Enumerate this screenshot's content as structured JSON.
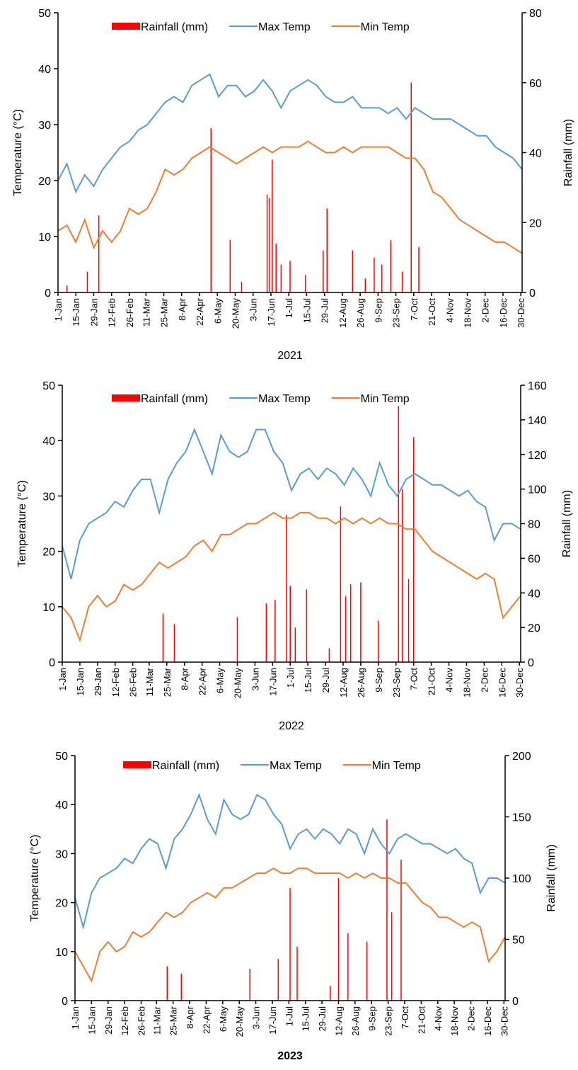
{
  "chart_data": [
    {
      "type": "bar-line",
      "xlabel": "2021",
      "ylabel": "Temperature (°C)",
      "y2label": "Rainfall (mm)",
      "ylim": [
        0,
        50
      ],
      "yticks": [
        0,
        10,
        20,
        30,
        40,
        50
      ],
      "y2lim": [
        0,
        80
      ],
      "y2ticks": [
        0,
        20,
        40,
        60,
        80
      ],
      "xticks": [
        "1-Jan",
        "15-Jan",
        "29-Jan",
        "12-Feb",
        "26-Feb",
        "11-Mar",
        "25-Mar",
        "8-Apr",
        "22-Apr",
        "6-May",
        "20-May",
        "3-Jun",
        "17-Jun",
        "1-Jul",
        "15-Jul",
        "29-Jul",
        "12-Aug",
        "26-Aug",
        "9-Sep",
        "23-Sep",
        "7-Oct",
        "21-Oct",
        "4-Nov",
        "18-Nov",
        "2-Dec",
        "16-Dec",
        "30-Dec"
      ],
      "x": [
        "1-Jan",
        "8-Jan",
        "15-Jan",
        "22-Jan",
        "29-Jan",
        "5-Feb",
        "12-Feb",
        "19-Feb",
        "26-Feb",
        "5-Mar",
        "12-Mar",
        "19-Mar",
        "26-Mar",
        "2-Apr",
        "9-Apr",
        "16-Apr",
        "23-Apr",
        "30-Apr",
        "7-May",
        "14-May",
        "21-May",
        "28-May",
        "4-Jun",
        "11-Jun",
        "18-Jun",
        "25-Jun",
        "2-Jul",
        "9-Jul",
        "16-Jul",
        "23-Jul",
        "30-Jul",
        "6-Aug",
        "13-Aug",
        "20-Aug",
        "27-Aug",
        "3-Sep",
        "10-Sep",
        "17-Sep",
        "24-Sep",
        "1-Oct",
        "8-Oct",
        "15-Oct",
        "22-Oct",
        "29-Oct",
        "5-Nov",
        "12-Nov",
        "19-Nov",
        "26-Nov",
        "3-Dec",
        "10-Dec",
        "17-Dec",
        "24-Dec",
        "31-Dec"
      ],
      "series": [
        {
          "name": "Rainfall (mm)",
          "color": "#ff0000",
          "axis": "y2",
          "x": [
            "8-Jan",
            "24-Jan",
            "2-Feb",
            "1-May",
            "16-May",
            "25-May",
            "14-Jun",
            "16-Jun",
            "18-Jun",
            "21-Jun",
            "25-Jun",
            "2-Jul",
            "14-Jul",
            "28-Jul",
            "31-Jul",
            "20-Aug",
            "30-Aug",
            "6-Sep",
            "12-Sep",
            "19-Sep",
            "28-Sep",
            "5-Oct",
            "11-Oct"
          ],
          "values": [
            2,
            6,
            22,
            47,
            15,
            3,
            28,
            27,
            38,
            14,
            8,
            9,
            5,
            12,
            24,
            12,
            4,
            10,
            8,
            15,
            6,
            60,
            13
          ]
        },
        {
          "name": "Max Temp",
          "color": "#5b9bd5",
          "values": [
            20,
            23,
            18,
            21,
            19,
            22,
            24,
            26,
            27,
            29,
            30,
            32,
            34,
            35,
            34,
            37,
            38,
            39,
            35,
            37,
            37,
            35,
            36,
            38,
            36,
            33,
            36,
            37,
            38,
            37,
            35,
            34,
            34,
            35,
            33,
            33,
            33,
            32,
            33,
            31,
            33,
            32,
            31,
            31,
            31,
            30,
            29,
            28,
            28,
            26,
            25,
            24,
            22
          ]
        },
        {
          "name": "Min Temp",
          "color": "#ed7d31",
          "values": [
            11,
            12,
            9,
            13,
            8,
            11,
            9,
            11,
            15,
            14,
            15,
            18,
            22,
            21,
            22,
            24,
            25,
            26,
            25,
            24,
            23,
            24,
            25,
            26,
            25,
            26,
            26,
            26,
            27,
            26,
            25,
            25,
            26,
            25,
            26,
            26,
            26,
            26,
            25,
            24,
            24,
            22,
            18,
            17,
            15,
            13,
            12,
            11,
            10,
            9,
            9,
            8,
            7
          ]
        }
      ]
    },
    {
      "type": "bar-line",
      "xlabel": "2022",
      "ylabel": "Temperature (°C)",
      "y2label": "Rainfall (mm)",
      "ylim": [
        0,
        50
      ],
      "yticks": [
        0,
        10,
        20,
        30,
        40,
        50
      ],
      "y2lim": [
        0,
        160
      ],
      "y2ticks": [
        0,
        20,
        40,
        60,
        80,
        100,
        120,
        140,
        160
      ],
      "xticks": [
        "1-Jan",
        "15-Jan",
        "29-Jan",
        "12-Feb",
        "26-Feb",
        "11-Mar",
        "25-Mar",
        "8-Apr",
        "22-Apr",
        "6-May",
        "20-May",
        "3-Jun",
        "17-Jun",
        "1-Jul",
        "15-Jul",
        "29-Jul",
        "12-Aug",
        "26-Aug",
        "9-Sep",
        "23-Sep",
        "7-Oct",
        "21-Oct",
        "4-Nov",
        "18-Nov",
        "2-Dec",
        "16-Dec",
        "30-Dec"
      ],
      "x": [
        "1-Jan",
        "8-Jan",
        "15-Jan",
        "22-Jan",
        "29-Jan",
        "5-Feb",
        "12-Feb",
        "19-Feb",
        "26-Feb",
        "5-Mar",
        "12-Mar",
        "19-Mar",
        "26-Mar",
        "2-Apr",
        "9-Apr",
        "16-Apr",
        "23-Apr",
        "30-Apr",
        "7-May",
        "14-May",
        "21-May",
        "28-May",
        "4-Jun",
        "11-Jun",
        "18-Jun",
        "25-Jun",
        "2-Jul",
        "9-Jul",
        "16-Jul",
        "23-Jul",
        "30-Jul",
        "6-Aug",
        "13-Aug",
        "20-Aug",
        "27-Aug",
        "3-Sep",
        "10-Sep",
        "17-Sep",
        "24-Sep",
        "1-Oct",
        "8-Oct",
        "15-Oct",
        "22-Oct",
        "29-Oct",
        "5-Nov",
        "12-Nov",
        "19-Nov",
        "26-Nov",
        "3-Dec",
        "10-Dec",
        "17-Dec",
        "24-Dec",
        "31-Dec"
      ],
      "series": [
        {
          "name": "Rainfall (mm)",
          "color": "#ff0000",
          "axis": "y2",
          "x": [
            "22-Mar",
            "31-Mar",
            "20-May",
            "12-Jun",
            "19-Jun",
            "28-Jun",
            "1-Jul",
            "5-Jul",
            "14-Jul",
            "1-Aug",
            "10-Aug",
            "14-Aug",
            "18-Aug",
            "26-Aug",
            "9-Sep",
            "25-Sep",
            "28-Sep",
            "3-Oct",
            "7-Oct"
          ],
          "values": [
            28,
            22,
            26,
            34,
            36,
            85,
            44,
            20,
            42,
            8,
            90,
            38,
            45,
            46,
            24,
            148,
            100,
            48,
            130
          ]
        },
        {
          "name": "Max Temp",
          "color": "#5b9bd5",
          "values": [
            21,
            15,
            22,
            25,
            26,
            27,
            29,
            28,
            31,
            33,
            33,
            27,
            33,
            36,
            38,
            42,
            38,
            34,
            41,
            38,
            37,
            38,
            42,
            42,
            38,
            36,
            31,
            34,
            35,
            33,
            35,
            34,
            32,
            35,
            33,
            30,
            36,
            32,
            30,
            33,
            34,
            33,
            32,
            32,
            31,
            30,
            31,
            29,
            28,
            22,
            25,
            25,
            24
          ]
        },
        {
          "name": "Min Temp",
          "color": "#ed7d31",
          "values": [
            10,
            8,
            4,
            10,
            12,
            10,
            11,
            14,
            13,
            14,
            16,
            18,
            17,
            18,
            19,
            21,
            22,
            20,
            23,
            23,
            24,
            25,
            25,
            26,
            27,
            26,
            26,
            27,
            27,
            26,
            26,
            25,
            26,
            25,
            26,
            25,
            26,
            25,
            25,
            24,
            24,
            22,
            20,
            19,
            18,
            17,
            16,
            15,
            16,
            15,
            8,
            10,
            12
          ]
        }
      ]
    },
    {
      "type": "bar-line",
      "xlabel": "2023",
      "ylabel": "Temperature (°C)",
      "y2label": "Rainfall (mm)",
      "ylim": [
        0,
        50
      ],
      "yticks": [
        0,
        10,
        20,
        30,
        40,
        50
      ],
      "y2lim": [
        0,
        200
      ],
      "y2ticks": [
        0,
        50,
        100,
        150,
        200
      ],
      "xticks": [
        "1-Jan",
        "15-Jan",
        "29-Jan",
        "12-Feb",
        "26-Feb",
        "11-Mar",
        "25-Mar",
        "8-Apr",
        "22-Apr",
        "6-May",
        "20-May",
        "3-Jun",
        "17-Jun",
        "1-Jul",
        "15-Jul",
        "29-Jul",
        "12-Aug",
        "26-Aug",
        "9-Sep",
        "23-Sep",
        "7-Oct",
        "21-Oct",
        "4-Nov",
        "18-Nov",
        "2-Dec",
        "16-Dec",
        "30-Dec"
      ],
      "x": [
        "1-Jan",
        "8-Jan",
        "15-Jan",
        "22-Jan",
        "29-Jan",
        "5-Feb",
        "12-Feb",
        "19-Feb",
        "26-Feb",
        "5-Mar",
        "12-Mar",
        "19-Mar",
        "26-Mar",
        "2-Apr",
        "9-Apr",
        "16-Apr",
        "23-Apr",
        "30-Apr",
        "7-May",
        "14-May",
        "21-May",
        "28-May",
        "4-Jun",
        "11-Jun",
        "18-Jun",
        "25-Jun",
        "2-Jul",
        "9-Jul",
        "16-Jul",
        "23-Jul",
        "30-Jul",
        "6-Aug",
        "13-Aug",
        "20-Aug",
        "27-Aug",
        "3-Sep",
        "10-Sep",
        "17-Sep",
        "24-Sep",
        "1-Oct",
        "8-Oct",
        "15-Oct",
        "22-Oct",
        "29-Oct",
        "5-Nov",
        "12-Nov",
        "19-Nov",
        "26-Nov",
        "3-Dec",
        "10-Dec",
        "17-Dec",
        "24-Dec",
        "31-Dec"
      ],
      "series": [
        {
          "name": "Rainfall (mm)",
          "color": "#ff0000",
          "axis": "y2",
          "x": [
            "20-Mar",
            "1-Apr",
            "29-May",
            "22-Jun",
            "2-Jul",
            "8-Jul",
            "5-Aug",
            "12-Aug",
            "20-Aug",
            "5-Sep",
            "22-Sep",
            "26-Sep",
            "4-Oct"
          ],
          "values": [
            28,
            22,
            26,
            34,
            92,
            44,
            12,
            100,
            55,
            48,
            148,
            72,
            115
          ]
        },
        {
          "name": "Max Temp",
          "color": "#5b9bd5",
          "values": [
            21,
            15,
            22,
            25,
            26,
            27,
            29,
            28,
            31,
            33,
            32,
            27,
            33,
            35,
            38,
            42,
            37,
            34,
            41,
            38,
            37,
            38,
            42,
            41,
            38,
            36,
            31,
            34,
            35,
            33,
            35,
            34,
            32,
            35,
            34,
            30,
            35,
            32,
            30,
            33,
            34,
            33,
            32,
            32,
            31,
            30,
            31,
            29,
            28,
            22,
            25,
            25,
            24
          ]
        },
        {
          "name": "Min Temp",
          "color": "#ed7d31",
          "values": [
            10,
            7,
            4,
            10,
            12,
            10,
            11,
            14,
            13,
            14,
            16,
            18,
            17,
            18,
            20,
            21,
            22,
            21,
            23,
            23,
            24,
            25,
            26,
            26,
            27,
            26,
            26,
            27,
            27,
            26,
            26,
            26,
            26,
            25,
            26,
            25,
            26,
            25,
            25,
            24,
            24,
            22,
            20,
            19,
            17,
            17,
            16,
            15,
            16,
            15,
            8,
            10,
            13
          ]
        }
      ]
    }
  ]
}
